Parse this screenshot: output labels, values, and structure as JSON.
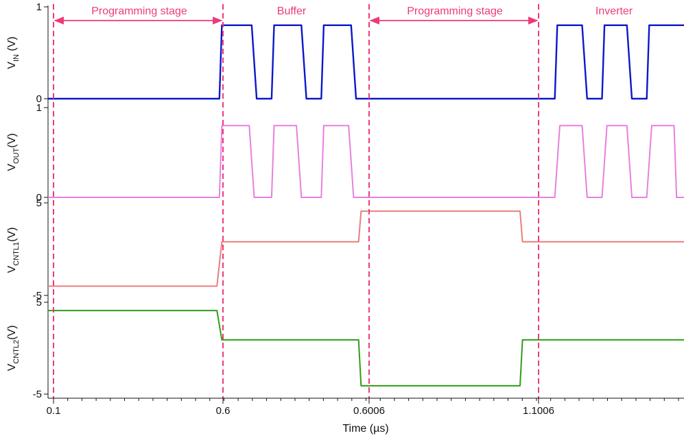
{
  "chart_data": {
    "type": "line",
    "title": "",
    "xlabel": "Time (µs)",
    "x_ticks": [
      "0.1",
      "0.6",
      "0.6006",
      "1.1006"
    ],
    "stage_markers": [
      "0.1",
      "0.6",
      "0.6006",
      "1.1006"
    ],
    "colors": {
      "marker": "#ee3a7a",
      "annotation": "#ee3a7a",
      "vin": "#0b17c8",
      "vout": "#e77fe0",
      "vcntl1": "#ec7c7c",
      "vcntl2": "#2f9d17"
    },
    "annotations": [
      {
        "text": "Programming stage",
        "from": "0.1",
        "to": "0.6",
        "arrow": true
      },
      {
        "text": "Buffer",
        "from": "0.6",
        "to": "0.6006",
        "arrow": false
      },
      {
        "text": "Programming stage",
        "from": "0.6006",
        "to": "1.1006",
        "arrow": true
      },
      {
        "text": "Inverter",
        "from": "1.1006",
        "to": "end",
        "arrow": false
      }
    ],
    "panels": [
      {
        "id": "vin",
        "ylabel_main": "V",
        "ylabel_sub": "IN",
        "ylabel_suffix": " (V)",
        "yticks": [
          "1",
          "0"
        ],
        "ylim": [
          0,
          1
        ],
        "series": [
          {
            "values": [
              {
                "t": 0.0,
                "v": 0.0
              },
              {
                "t": 0.2695,
                "v": 0.0
              },
              {
                "t": 0.2734,
                "v": 0.8
              },
              {
                "t": 0.3203,
                "v": 0.8
              },
              {
                "t": 0.3281,
                "v": 0.0
              },
              {
                "t": 0.3516,
                "v": 0.0
              },
              {
                "t": 0.3555,
                "v": 0.8
              },
              {
                "t": 0.3984,
                "v": 0.8
              },
              {
                "t": 0.4063,
                "v": 0.0
              },
              {
                "t": 0.4297,
                "v": 0.0
              },
              {
                "t": 0.4336,
                "v": 0.8
              },
              {
                "t": 0.4766,
                "v": 0.8
              },
              {
                "t": 0.4844,
                "v": 0.0
              },
              {
                "t": 0.7969,
                "v": 0.0
              },
              {
                "t": 0.8008,
                "v": 0.8
              },
              {
                "t": 0.8398,
                "v": 0.8
              },
              {
                "t": 0.8477,
                "v": 0.0
              },
              {
                "t": 0.8711,
                "v": 0.0
              },
              {
                "t": 0.875,
                "v": 0.8
              },
              {
                "t": 0.9102,
                "v": 0.8
              },
              {
                "t": 0.918,
                "v": 0.0
              },
              {
                "t": 0.9414,
                "v": 0.0
              },
              {
                "t": 0.9453,
                "v": 0.8
              },
              {
                "t": 1.0,
                "v": 0.8
              }
            ]
          }
        ]
      },
      {
        "id": "vout",
        "ylabel_main": "V",
        "ylabel_sub": "OUT",
        "ylabel_suffix": "(V)",
        "yticks": [
          "1",
          "0"
        ],
        "ylim": [
          0,
          1
        ],
        "series": [
          {
            "values": [
              {
                "t": 0.0,
                "v": 0.0
              },
              {
                "t": 0.2695,
                "v": 0.0
              },
              {
                "t": 0.2734,
                "v": 0.8
              },
              {
                "t": 0.3164,
                "v": 0.8
              },
              {
                "t": 0.3242,
                "v": 0.0
              },
              {
                "t": 0.3516,
                "v": 0.0
              },
              {
                "t": 0.3555,
                "v": 0.8
              },
              {
                "t": 0.3906,
                "v": 0.8
              },
              {
                "t": 0.3984,
                "v": 0.0
              },
              {
                "t": 0.4297,
                "v": 0.0
              },
              {
                "t": 0.4336,
                "v": 0.8
              },
              {
                "t": 0.4727,
                "v": 0.8
              },
              {
                "t": 0.4805,
                "v": 0.0
              },
              {
                "t": 0.7969,
                "v": 0.0
              },
              {
                "t": 0.8047,
                "v": 0.8
              },
              {
                "t": 0.8398,
                "v": 0.8
              },
              {
                "t": 0.8477,
                "v": 0.0
              },
              {
                "t": 0.8711,
                "v": 0.0
              },
              {
                "t": 0.8789,
                "v": 0.8
              },
              {
                "t": 0.9102,
                "v": 0.8
              },
              {
                "t": 0.918,
                "v": 0.0
              },
              {
                "t": 0.9414,
                "v": 0.0
              },
              {
                "t": 0.9492,
                "v": 0.8
              },
              {
                "t": 0.9844,
                "v": 0.8
              },
              {
                "t": 0.9883,
                "v": 0.0
              },
              {
                "t": 1.0,
                "v": 0.0
              }
            ]
          }
        ]
      },
      {
        "id": "vcntl1",
        "ylabel_main": "V",
        "ylabel_sub": "CNTL1",
        "ylabel_suffix": "(V)",
        "yticks": [
          "5",
          "-5"
        ],
        "ylim": [
          -5,
          5
        ],
        "series": [
          {
            "values": [
              {
                "t": 0.0,
                "v": -4.0
              },
              {
                "t": 0.2656,
                "v": -4.0
              },
              {
                "t": 0.2734,
                "v": 0.8
              },
              {
                "t": 0.4883,
                "v": 0.8
              },
              {
                "t": 0.4922,
                "v": 4.1
              },
              {
                "t": 0.7422,
                "v": 4.1
              },
              {
                "t": 0.7461,
                "v": 0.8
              },
              {
                "t": 1.0,
                "v": 0.8
              }
            ]
          }
        ]
      },
      {
        "id": "vcntl2",
        "ylabel_main": "V",
        "ylabel_sub": "CNTL2",
        "ylabel_suffix": "(V)",
        "yticks": [
          "5",
          "-5"
        ],
        "ylim": [
          -5,
          5
        ],
        "series": [
          {
            "values": [
              {
                "t": 0.0,
                "v": 4.1
              },
              {
                "t": 0.2656,
                "v": 4.1
              },
              {
                "t": 0.2734,
                "v": 0.9
              },
              {
                "t": 0.4883,
                "v": 0.9
              },
              {
                "t": 0.4922,
                "v": -4.1
              },
              {
                "t": 0.7422,
                "v": -4.1
              },
              {
                "t": 0.7461,
                "v": 0.9
              },
              {
                "t": 1.0,
                "v": 0.9
              }
            ]
          }
        ]
      }
    ]
  }
}
